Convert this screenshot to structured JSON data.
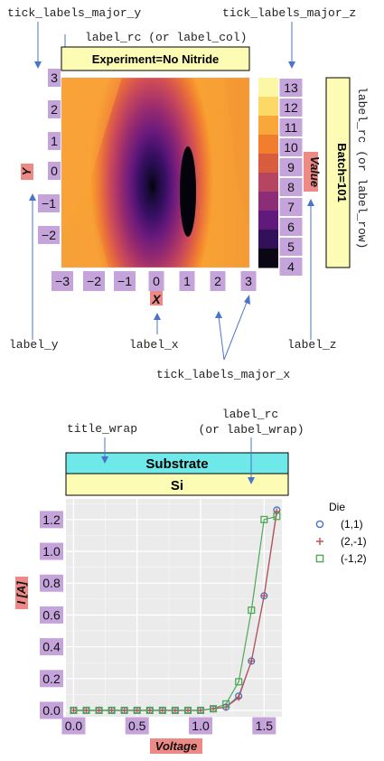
{
  "annotations": {
    "tick_labels_major_y": "tick_labels_major_y",
    "tick_labels_major_z": "tick_labels_major_z",
    "label_rc_col": "label_rc (or label_col)",
    "label_rc_row": "label_rc (or label_row)",
    "label_y": "label_y",
    "label_x": "label_x",
    "label_z": "label_z",
    "tick_labels_major_x": "tick_labels_major_x",
    "title_wrap": "title_wrap",
    "label_rc_wrap_1": "label_rc",
    "label_rc_wrap_2": "(or label_wrap)"
  },
  "colors": {
    "tick_label_bg": "#c5a4db",
    "axis_label_bg": "#ee8a86",
    "strip_label_bg": "#fcfcb4",
    "title_wrap_bg": "#6ee8e8",
    "annotation_arrow": "#4a74c9",
    "panel_bg": "#ebebeb",
    "series_1": "#4472c4",
    "series_2": "#c0504d",
    "series_3": "#4ea855"
  },
  "contour_plot": {
    "col_label": "Experiment=No Nitride",
    "row_label": "Batch=101",
    "x_label": "X",
    "y_label": "Y",
    "z_label": "Value",
    "x_ticks": [
      "−3",
      "−2",
      "−1",
      "0",
      "1",
      "2",
      "3"
    ],
    "y_ticks": [
      "3",
      "2",
      "1",
      "0",
      "−1",
      "−2"
    ],
    "z_ticks": [
      "13",
      "12",
      "11",
      "10",
      "9",
      "8",
      "7",
      "6",
      "5",
      "4"
    ],
    "colorbar_colors": [
      "#fbf7a6",
      "#fcd866",
      "#f9a63a",
      "#f07e2e",
      "#d95c3f",
      "#b54560",
      "#8c2d78",
      "#5f1a7c",
      "#33105a",
      "#0a0614"
    ]
  },
  "line_plot": {
    "title_wrap": "Substrate",
    "wrap_label": "Si",
    "x_label": "Voltage",
    "y_label": "I [A]",
    "legend_title": "Die",
    "x_ticks": [
      "0.0",
      "0.5",
      "1.0",
      "1.5"
    ],
    "y_ticks": [
      "1.2",
      "1.0",
      "0.8",
      "0.6",
      "0.4",
      "0.2",
      "0.0"
    ]
  },
  "chart_data": {
    "type": "line",
    "title": "Substrate",
    "facet": "Si",
    "xlabel": "Voltage",
    "ylabel": "I [A]",
    "xlim": [
      -0.06,
      1.64
    ],
    "ylim": [
      -0.04,
      1.33
    ],
    "grid": true,
    "legend_title": "Die",
    "legend_position": "right",
    "x": [
      0.0,
      0.1,
      0.2,
      0.3,
      0.4,
      0.5,
      0.6,
      0.7,
      0.8,
      0.9,
      1.0,
      1.1,
      1.2,
      1.3,
      1.4,
      1.5,
      1.6
    ],
    "series": [
      {
        "name": "(1,1)",
        "marker": "circle",
        "color": "#4472c4",
        "values": [
          0,
          0,
          0,
          0,
          0,
          0,
          0,
          0,
          0,
          0,
          0,
          0.01,
          0.02,
          0.09,
          0.31,
          0.72,
          1.26
        ]
      },
      {
        "name": "(2,-1)",
        "marker": "plus",
        "color": "#c0504d",
        "values": [
          0,
          0,
          0,
          0,
          0,
          0,
          0,
          0,
          0,
          0,
          0,
          0.01,
          0.02,
          0.08,
          0.31,
          0.72,
          1.25
        ]
      },
      {
        "name": "(-1,2)",
        "marker": "square",
        "color": "#4ea855",
        "values": [
          0,
          0,
          0,
          0,
          0,
          0,
          0,
          0,
          0,
          0,
          0,
          0.01,
          0.04,
          0.18,
          0.63,
          1.2,
          1.22
        ]
      }
    ]
  }
}
